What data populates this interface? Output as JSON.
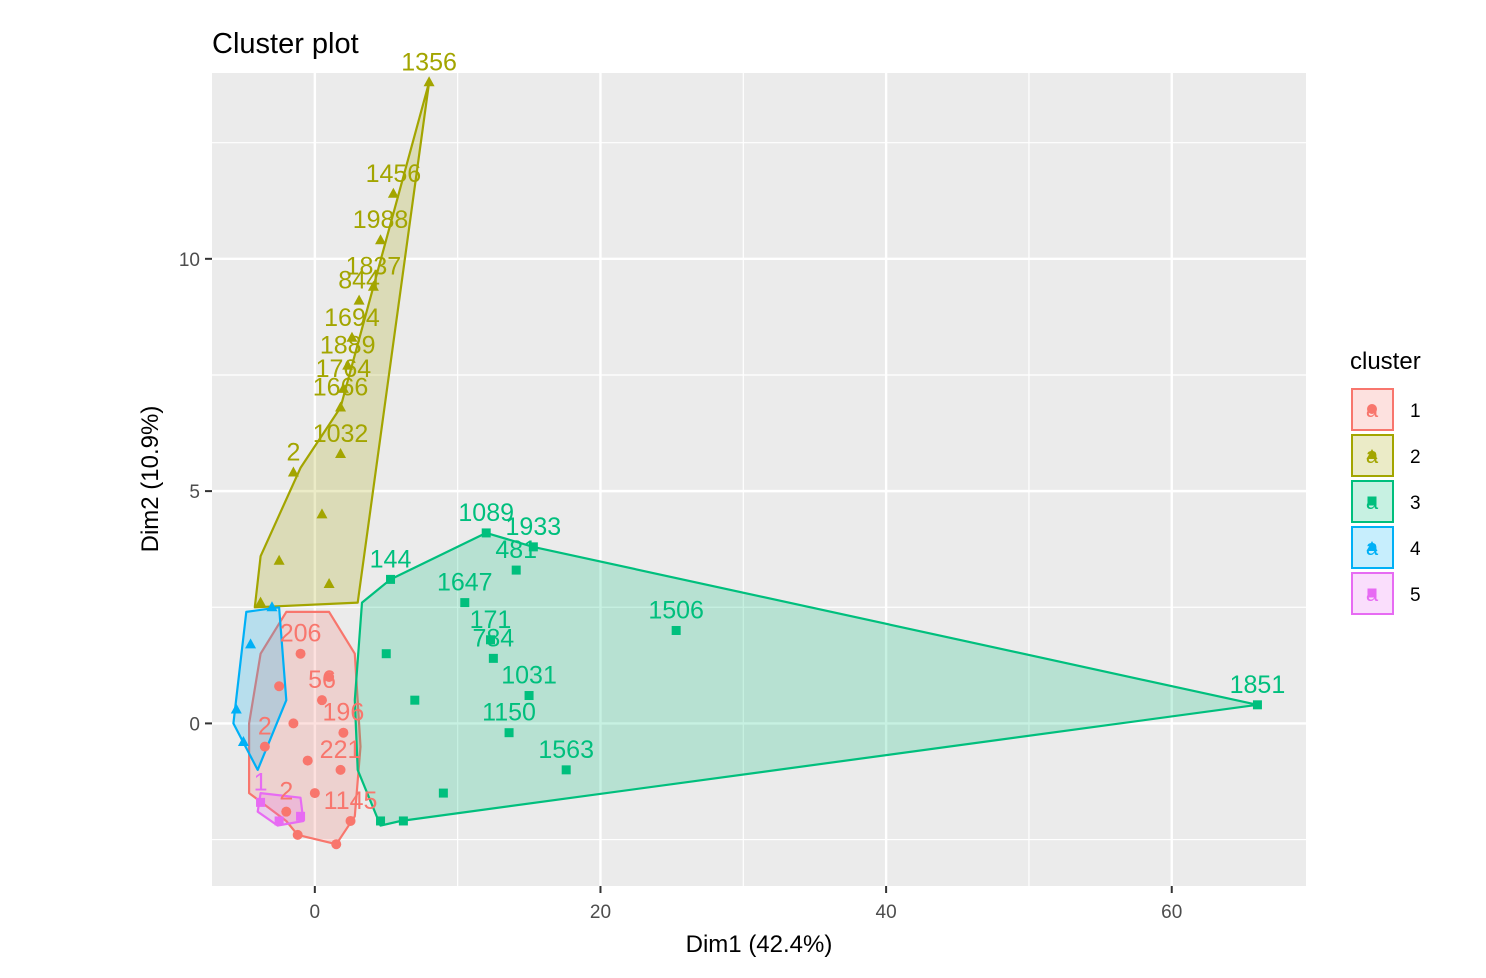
{
  "chart_data": {
    "type": "scatter",
    "title": "Cluster plot",
    "xlabel": "Dim1 (42.4%)",
    "ylabel": "Dim2 (10.9%)",
    "xlim": [
      -7.2,
      69.4
    ],
    "ylim": [
      -3.5,
      14.0
    ],
    "x_ticks": [
      0,
      20,
      40,
      60
    ],
    "y_ticks": [
      0,
      5,
      10
    ],
    "grid": true,
    "legend": {
      "title": "cluster",
      "placement": "right",
      "glyph": "a",
      "entries": [
        "1",
        "2",
        "3",
        "4",
        "5"
      ]
    },
    "series": [
      {
        "name": "1",
        "color": "#F8766D",
        "marker": "circle",
        "points": [
          {
            "x": -1.2,
            "y": -2.4,
            "label": ""
          },
          {
            "x": 1.5,
            "y": -2.6,
            "label": ""
          },
          {
            "x": 2.5,
            "y": -2.1,
            "label": "1145"
          },
          {
            "x": 1.8,
            "y": -1.0,
            "label": "221"
          },
          {
            "x": -3.5,
            "y": -0.5,
            "label": "2"
          },
          {
            "x": -2.0,
            "y": -1.9,
            "label": "2"
          },
          {
            "x": 0.5,
            "y": 0.5,
            "label": "56"
          },
          {
            "x": -1.0,
            "y": 1.5,
            "label": "206"
          },
          {
            "x": 2.0,
            "y": -0.2,
            "label": "196"
          },
          {
            "x": -0.5,
            "y": -0.8,
            "label": ""
          },
          {
            "x": 1.0,
            "y": 1.0,
            "label": ""
          },
          {
            "x": -2.5,
            "y": 0.8,
            "label": ""
          },
          {
            "x": 0.0,
            "y": -1.5,
            "label": ""
          },
          {
            "x": -1.5,
            "y": 0.0,
            "label": ""
          }
        ]
      },
      {
        "name": "2",
        "color": "#A3A500",
        "marker": "triangle",
        "points": [
          {
            "x": 8.0,
            "y": 13.8,
            "label": "1356"
          },
          {
            "x": 5.5,
            "y": 11.4,
            "label": "1456"
          },
          {
            "x": 4.6,
            "y": 10.4,
            "label": "1988"
          },
          {
            "x": 4.1,
            "y": 9.4,
            "label": "1837"
          },
          {
            "x": 3.1,
            "y": 9.1,
            "label": "844"
          },
          {
            "x": 2.6,
            "y": 8.3,
            "label": "1694"
          },
          {
            "x": 2.3,
            "y": 7.7,
            "label": "1889"
          },
          {
            "x": 2.0,
            "y": 7.2,
            "label": "1764"
          },
          {
            "x": 1.8,
            "y": 6.8,
            "label": "1666"
          },
          {
            "x": 1.8,
            "y": 5.8,
            "label": "1032"
          },
          {
            "x": -1.5,
            "y": 5.4,
            "label": "2"
          },
          {
            "x": 0.5,
            "y": 4.5,
            "label": ""
          },
          {
            "x": -2.5,
            "y": 3.5,
            "label": ""
          },
          {
            "x": -3.8,
            "y": 2.6,
            "label": ""
          },
          {
            "x": 1.0,
            "y": 3.0,
            "label": ""
          }
        ]
      },
      {
        "name": "3",
        "color": "#00BF7D",
        "marker": "square",
        "points": [
          {
            "x": 66.0,
            "y": 0.4,
            "label": "1851"
          },
          {
            "x": 25.3,
            "y": 2.0,
            "label": "1506"
          },
          {
            "x": 12.0,
            "y": 4.1,
            "label": "1089"
          },
          {
            "x": 15.3,
            "y": 3.8,
            "label": "1933"
          },
          {
            "x": 14.1,
            "y": 3.3,
            "label": "481"
          },
          {
            "x": 5.3,
            "y": 3.1,
            "label": "144"
          },
          {
            "x": 10.5,
            "y": 2.6,
            "label": "1647"
          },
          {
            "x": 12.3,
            "y": 1.8,
            "label": "171"
          },
          {
            "x": 12.5,
            "y": 1.4,
            "label": "784"
          },
          {
            "x": 15.0,
            "y": 0.6,
            "label": "1031"
          },
          {
            "x": 13.6,
            "y": -0.2,
            "label": "1150"
          },
          {
            "x": 17.6,
            "y": -1.0,
            "label": "1563"
          },
          {
            "x": 9.0,
            "y": -1.5,
            "label": ""
          },
          {
            "x": 6.2,
            "y": -2.1,
            "label": ""
          },
          {
            "x": 4.6,
            "y": -2.1,
            "label": ""
          },
          {
            "x": 7.0,
            "y": 0.5,
            "label": ""
          },
          {
            "x": 5.0,
            "y": 1.5,
            "label": ""
          }
        ]
      },
      {
        "name": "4",
        "color": "#00B0F6",
        "marker": "triangle",
        "points": [
          {
            "x": -5.5,
            "y": 0.3,
            "label": ""
          },
          {
            "x": -4.5,
            "y": 1.7,
            "label": ""
          },
          {
            "x": -3.0,
            "y": 2.5,
            "label": ""
          },
          {
            "x": -5.0,
            "y": -0.4,
            "label": ""
          }
        ]
      },
      {
        "name": "5",
        "color": "#E76BF3",
        "marker": "square",
        "points": [
          {
            "x": -3.8,
            "y": -1.7,
            "label": "1"
          },
          {
            "x": -2.5,
            "y": -2.1,
            "label": ""
          },
          {
            "x": -1.0,
            "y": -2.0,
            "label": ""
          }
        ]
      }
    ],
    "hulls": [
      {
        "cluster": "1",
        "points": [
          [
            -4.6,
            -1.5
          ],
          [
            -2.0,
            -2.1
          ],
          [
            -1.2,
            -2.4
          ],
          [
            1.5,
            -2.6
          ],
          [
            2.8,
            -2.0
          ],
          [
            3.2,
            -0.5
          ],
          [
            2.8,
            1.5
          ],
          [
            1.0,
            2.4
          ],
          [
            -2.0,
            2.4
          ],
          [
            -3.8,
            1.5
          ],
          [
            -4.6,
            0.0
          ]
        ]
      },
      {
        "cluster": "2",
        "points": [
          [
            -4.2,
            2.5
          ],
          [
            3.0,
            2.6
          ],
          [
            8.0,
            13.8
          ],
          [
            1.8,
            6.8
          ],
          [
            -1.0,
            5.5
          ],
          [
            -3.8,
            3.6
          ]
        ]
      },
      {
        "cluster": "3",
        "points": [
          [
            4.6,
            -2.2
          ],
          [
            6.0,
            -2.1
          ],
          [
            66.0,
            0.4
          ],
          [
            15.3,
            3.8
          ],
          [
            12.0,
            4.1
          ],
          [
            5.3,
            3.1
          ],
          [
            3.3,
            2.6
          ],
          [
            2.8,
            0.5
          ],
          [
            3.0,
            -1.0
          ]
        ]
      },
      {
        "cluster": "4",
        "points": [
          [
            -5.7,
            0.0
          ],
          [
            -4.8,
            2.4
          ],
          [
            -2.5,
            2.5
          ],
          [
            -2.0,
            0.5
          ],
          [
            -4.0,
            -1.0
          ]
        ]
      },
      {
        "cluster": "5",
        "points": [
          [
            -4.0,
            -1.9
          ],
          [
            -2.6,
            -2.2
          ],
          [
            -0.8,
            -2.1
          ],
          [
            -1.0,
            -1.6
          ],
          [
            -3.8,
            -1.5
          ]
        ]
      }
    ]
  }
}
